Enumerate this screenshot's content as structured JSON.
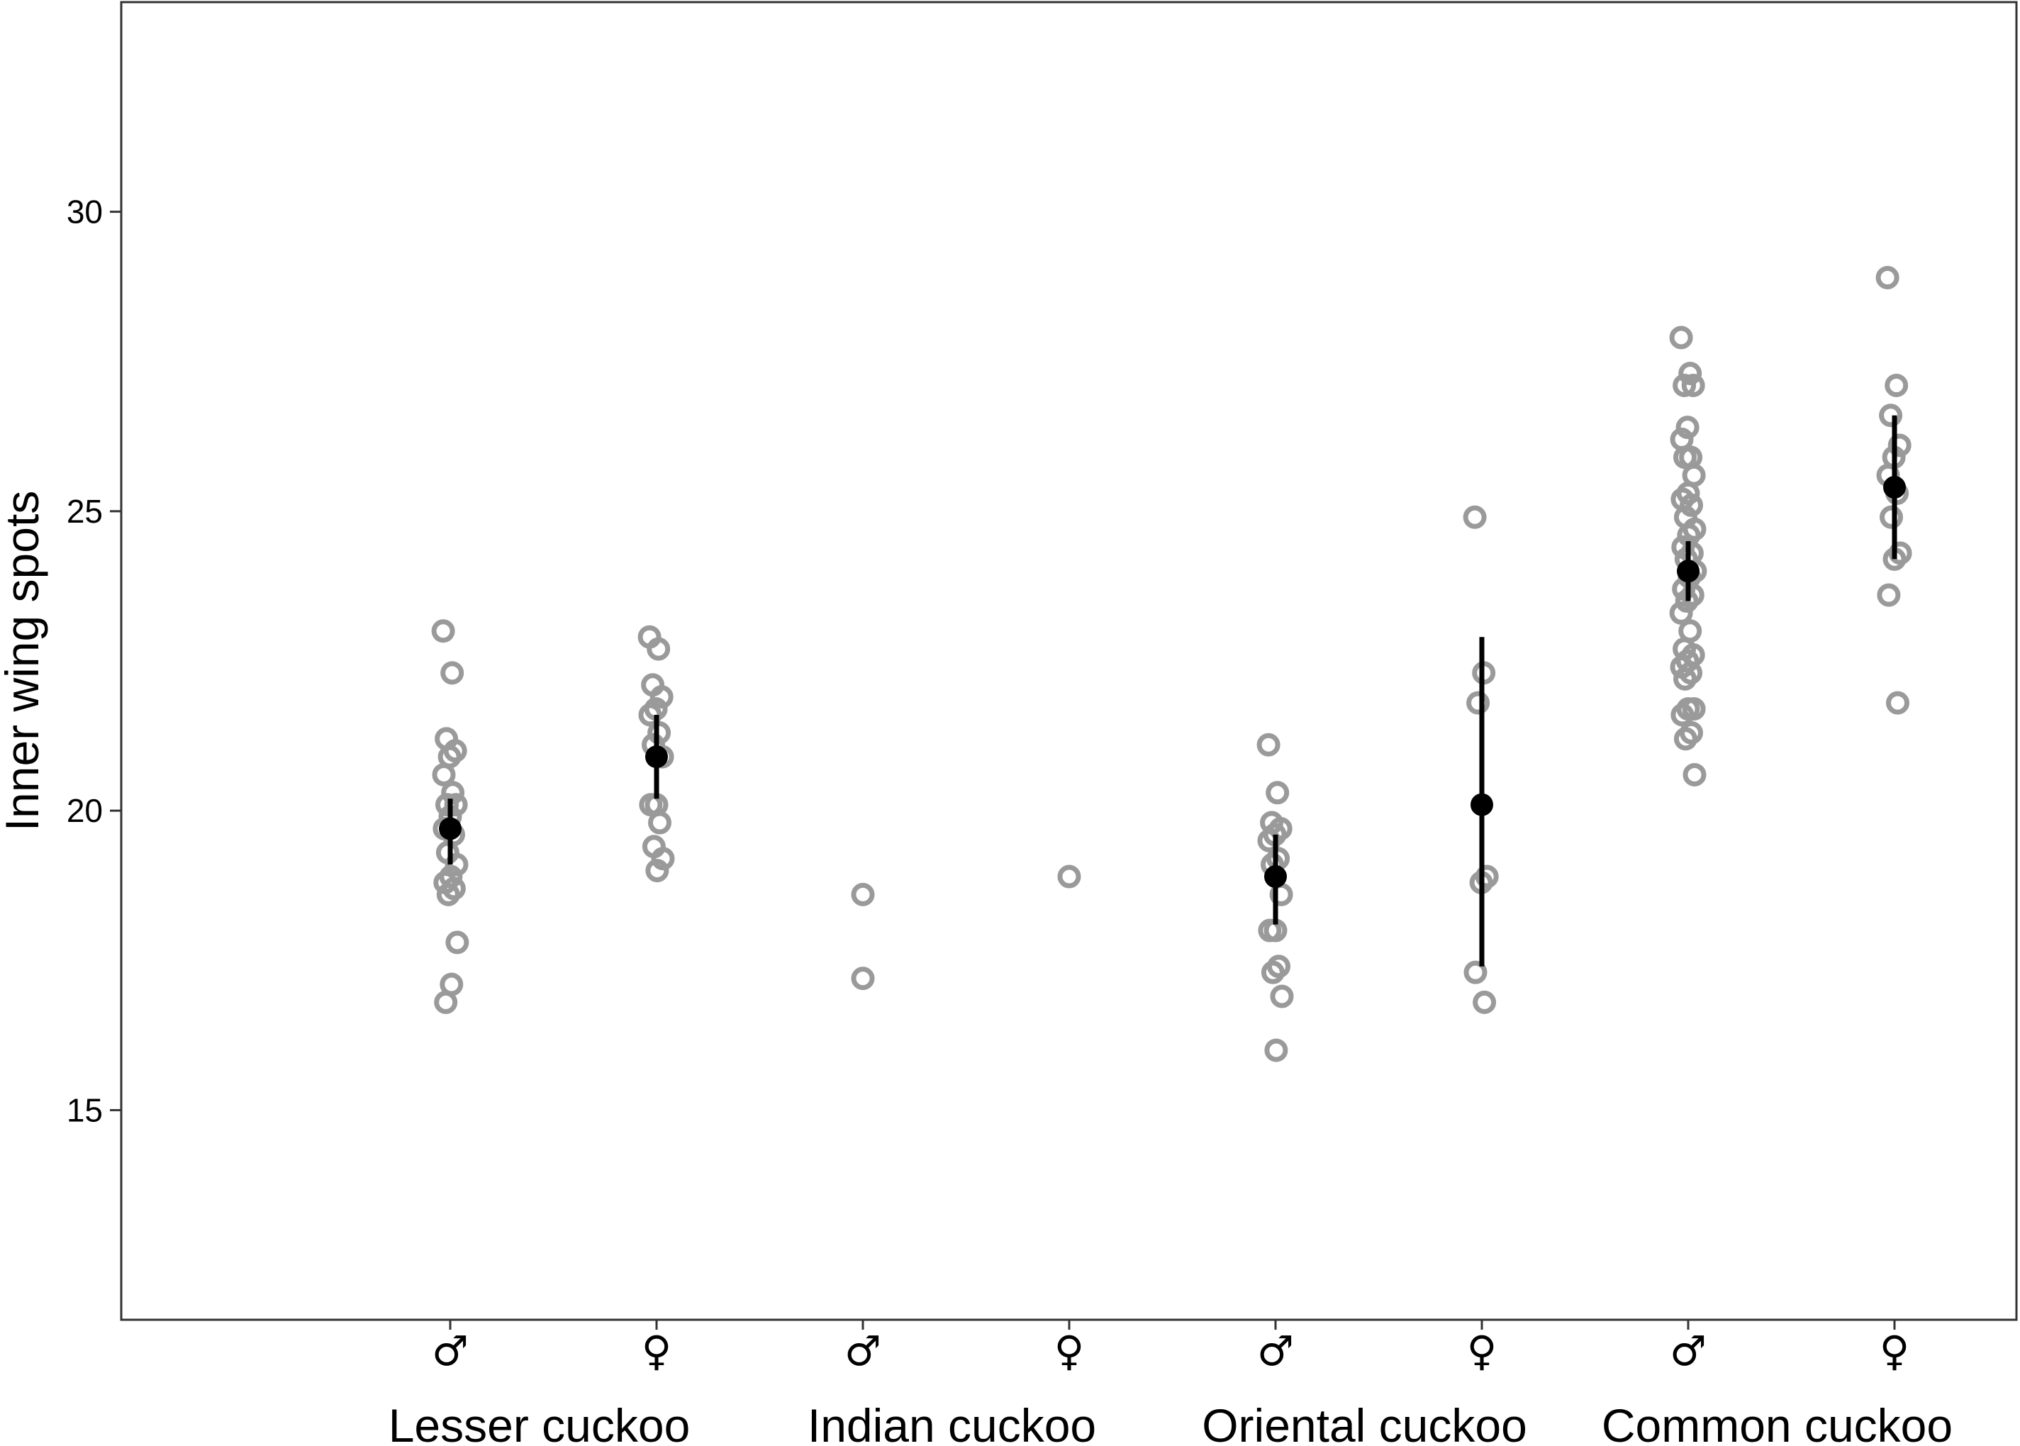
{
  "chart_data": {
    "type": "scatter",
    "ylabel": "Inner wing spots",
    "yticks": [
      15,
      20,
      25,
      30
    ],
    "ylim": [
      11.5,
      33.5
    ],
    "grid": false,
    "legend": "none",
    "colors": {
      "points": "#9a9a9a",
      "mean": "#000000",
      "axis": "#333333"
    },
    "categories": [
      {
        "sex": "♂",
        "group": "Lesser cuckoo",
        "points": [
          23.0,
          22.3,
          21.2,
          21.0,
          20.9,
          20.6,
          20.3,
          20.1,
          20.1,
          19.9,
          19.7,
          19.6,
          19.3,
          19.1,
          18.9,
          18.8,
          18.7,
          18.6,
          17.8,
          17.1,
          16.8
        ],
        "mean": 19.7,
        "error": [
          19.1,
          20.2
        ]
      },
      {
        "sex": "♀",
        "group": "Lesser cuckoo",
        "points": [
          22.9,
          22.7,
          22.1,
          21.9,
          21.7,
          21.6,
          21.3,
          21.1,
          20.9,
          20.1,
          20.1,
          19.8,
          19.4,
          19.2,
          19.0
        ],
        "mean": 20.9,
        "error": [
          20.2,
          21.6
        ]
      },
      {
        "sex": "♂",
        "group": "Indian cuckoo",
        "points": [
          18.6,
          17.2
        ],
        "mean": null,
        "error": null
      },
      {
        "sex": "♀",
        "group": "Indian cuckoo",
        "points": [
          18.9
        ],
        "mean": null,
        "error": null
      },
      {
        "sex": "♂",
        "group": "Oriental cuckoo",
        "points": [
          21.1,
          20.3,
          19.8,
          19.7,
          19.6,
          19.5,
          19.2,
          19.1,
          18.6,
          18.0,
          18.0,
          17.4,
          17.3,
          16.9,
          16.0
        ],
        "mean": 18.9,
        "error": [
          18.1,
          19.6
        ]
      },
      {
        "sex": "♀",
        "group": "Oriental cuckoo",
        "points": [
          24.9,
          22.3,
          21.8,
          18.9,
          18.8,
          17.3,
          16.8
        ],
        "mean": 20.1,
        "error": [
          17.4,
          22.9
        ]
      },
      {
        "sex": "♂",
        "group": "Common cuckoo",
        "points": [
          27.9,
          27.3,
          27.1,
          27.1,
          26.4,
          26.2,
          25.9,
          25.9,
          25.6,
          25.3,
          25.2,
          25.1,
          24.9,
          24.7,
          24.6,
          24.4,
          24.3,
          24.2,
          24.0,
          23.9,
          23.7,
          23.6,
          23.5,
          23.3,
          23.0,
          22.7,
          22.6,
          22.5,
          22.4,
          22.3,
          22.2,
          21.7,
          21.7,
          21.6,
          21.3,
          21.2,
          20.6
        ],
        "mean": 24.0,
        "error": [
          23.5,
          24.5
        ]
      },
      {
        "sex": "♀",
        "group": "Common cuckoo",
        "points": [
          28.9,
          27.1,
          26.6,
          26.1,
          25.9,
          25.6,
          25.3,
          24.9,
          24.3,
          24.2,
          23.6,
          21.8
        ],
        "mean": 25.4,
        "error": [
          24.2,
          26.6
        ]
      }
    ],
    "groups": [
      "Lesser cuckoo",
      "Indian cuckoo",
      "Oriental cuckoo",
      "Common cuckoo"
    ]
  }
}
